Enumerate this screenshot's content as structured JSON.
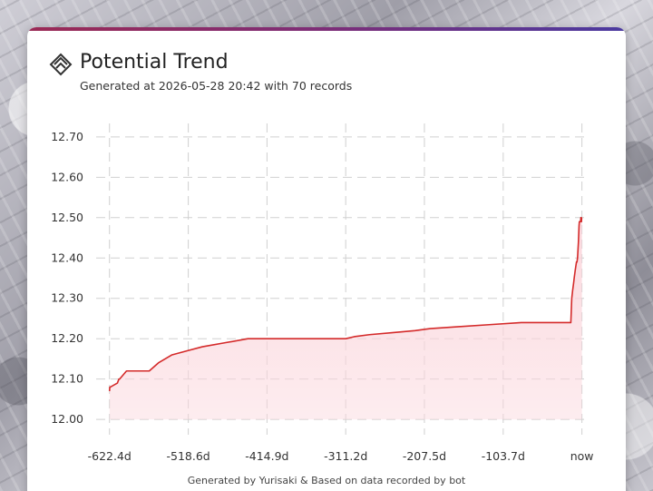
{
  "header": {
    "title": "Potential Trend",
    "subtitle": "Generated at 2026-05-28 20:42 with 70 records",
    "logo_icon": "arcaea-logo-icon"
  },
  "footer": {
    "text": "Generated by Yurisaki & Based on data recorded by bot"
  },
  "colors": {
    "accent_start": "#9b2a55",
    "accent_end": "#4b3aa0",
    "line": "#d42a2a",
    "fill": "#fbd6dc"
  },
  "chart_data": {
    "type": "area",
    "title": "",
    "xlabel": "",
    "ylabel": "",
    "grid": true,
    "legend": "none",
    "xlim": [
      -640,
      10
    ],
    "ylim": [
      11.98,
      12.72
    ],
    "yticks": [
      12.0,
      12.1,
      12.2,
      12.3,
      12.4,
      12.5,
      12.6,
      12.7
    ],
    "ytick_labels": [
      "12.00",
      "12.10",
      "12.20",
      "12.30",
      "12.40",
      "12.50",
      "12.60",
      "12.70"
    ],
    "xticks": [
      -622.4,
      -518.6,
      -414.9,
      -311.2,
      -207.5,
      -103.7,
      0
    ],
    "xtick_labels": [
      "-622.4d",
      "-518.6d",
      "-414.9d",
      "-311.2d",
      "-207.5d",
      "-103.7d",
      "now"
    ],
    "series": [
      {
        "x": [
          -622.4,
          -622.0,
          -621.5,
          -612,
          -610,
          -609,
          -600,
          -590,
          -587,
          -582,
          -580,
          -578,
          -570,
          -558,
          -540,
          -520,
          -500,
          -470,
          -440,
          -420,
          -400,
          -370,
          -340,
          -311.2,
          -300,
          -280,
          -250,
          -220,
          -200,
          -160,
          -120,
          -80,
          -40,
          -30,
          -15,
          -14.6,
          -14.2,
          -13.8,
          -13.4,
          -12.8,
          -12.2,
          -11.5,
          -10.8,
          -10.2,
          -9.5,
          -8.8,
          -8,
          -7.2,
          -6.5,
          -5.8,
          -5.2,
          -4.6,
          -4.2,
          -3.8,
          -3.4,
          -3.0,
          -2.6,
          -2.2,
          -1.8,
          -1.4,
          -1.0,
          -0.8,
          -0.6,
          -0.4,
          -0.3,
          -0.2,
          -0.15,
          -0.1,
          -0.05,
          0
        ],
        "y": [
          12.07,
          12.08,
          12.08,
          12.09,
          12.1,
          12.1,
          12.12,
          12.12,
          12.12,
          12.12,
          12.12,
          12.12,
          12.12,
          12.14,
          12.16,
          12.17,
          12.18,
          12.19,
          12.2,
          12.2,
          12.2,
          12.2,
          12.2,
          12.2,
          12.205,
          12.21,
          12.215,
          12.22,
          12.225,
          12.23,
          12.235,
          12.24,
          12.24,
          12.24,
          12.24,
          12.24,
          12.26,
          12.28,
          12.3,
          12.31,
          12.32,
          12.33,
          12.34,
          12.35,
          12.36,
          12.37,
          12.38,
          12.39,
          12.39,
          12.4,
          12.42,
          12.44,
          12.46,
          12.48,
          12.49,
          12.49,
          12.49,
          12.49,
          12.49,
          12.5,
          12.5,
          12.49,
          12.49,
          12.5,
          12.5,
          12.5,
          12.5,
          12.5,
          12.5,
          12.5
        ]
      }
    ]
  }
}
